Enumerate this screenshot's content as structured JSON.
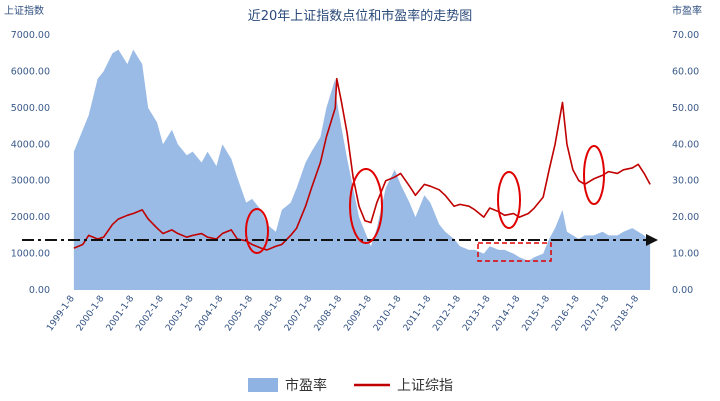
{
  "chart_data": {
    "type": "area",
    "title": "近20年上证指数点位和市盈率的走势图",
    "ylabel_left": "上证指数",
    "ylabel_right": "市盈率",
    "ylim_left": [
      0,
      7000
    ],
    "ylim_right": [
      0,
      70
    ],
    "yticks_left": [
      "0.00",
      "1000.00",
      "2000.00",
      "3000.00",
      "4000.00",
      "5000.00",
      "6000.00",
      "7000.00"
    ],
    "yticks_right": [
      "0.00",
      "10.00",
      "20.00",
      "30.00",
      "40.00",
      "50.00",
      "60.00",
      "70.00"
    ],
    "xticks": [
      "1999-1-8",
      "2000-1-8",
      "2001-1-8",
      "2002-1-8",
      "2003-1-8",
      "2004-1-8",
      "2005-1-8",
      "2006-1-8",
      "2007-1-8",
      "2008-1-8",
      "2009-1-8",
      "2010-1-8",
      "2011-1-8",
      "2012-1-8",
      "2013-1-8",
      "2014-1-8",
      "2015-1-8",
      "2016-1-8",
      "2017-1-8",
      "2018-1-8"
    ],
    "x": [
      1999.0,
      1999.3,
      1999.5,
      1999.8,
      2000.0,
      2000.3,
      2000.5,
      2000.8,
      2001.0,
      2001.3,
      2001.5,
      2001.8,
      2002.0,
      2002.3,
      2002.5,
      2002.8,
      2003.0,
      2003.3,
      2003.5,
      2003.8,
      2004.0,
      2004.3,
      2004.5,
      2004.8,
      2005.0,
      2005.3,
      2005.5,
      2005.8,
      2006.0,
      2006.3,
      2006.5,
      2006.8,
      2007.0,
      2007.3,
      2007.5,
      2007.8,
      2007.85,
      2008.0,
      2008.2,
      2008.4,
      2008.6,
      2008.8,
      2009.0,
      2009.2,
      2009.5,
      2009.8,
      2010.0,
      2010.3,
      2010.5,
      2010.8,
      2011.0,
      2011.3,
      2011.5,
      2011.8,
      2012.0,
      2012.3,
      2012.5,
      2012.8,
      2013.0,
      2013.3,
      2013.5,
      2013.8,
      2014.0,
      2014.3,
      2014.5,
      2014.8,
      2015.0,
      2015.2,
      2015.45,
      2015.6,
      2015.8,
      2016.0,
      2016.2,
      2016.5,
      2016.8,
      2017.0,
      2017.3,
      2017.5,
      2017.8,
      2018.0,
      2018.2,
      2018.4
    ],
    "series": [
      {
        "name": "市盈率",
        "axis": "right",
        "values": [
          38,
          44,
          48,
          58,
          60,
          65,
          66,
          62,
          66,
          62,
          50,
          46,
          40,
          44,
          40,
          37,
          38,
          35,
          38,
          34,
          40,
          36,
          31,
          24,
          25,
          22,
          18,
          16,
          22,
          24,
          28,
          35,
          38,
          42,
          50,
          58,
          52,
          45,
          36,
          28,
          20,
          16,
          12,
          17,
          28,
          33,
          29,
          24,
          20,
          26,
          24,
          18,
          16,
          14,
          12,
          11,
          11,
          10,
          12,
          11,
          11,
          10,
          9,
          8,
          9,
          10,
          14,
          17,
          22,
          16,
          15,
          14,
          15,
          15,
          16,
          15,
          15,
          16,
          17,
          16,
          15,
          13
        ]
      },
      {
        "name": "上证综指",
        "axis": "left",
        "values": [
          1150,
          1250,
          1500,
          1400,
          1450,
          1800,
          1950,
          2050,
          2100,
          2200,
          1950,
          1700,
          1550,
          1650,
          1550,
          1450,
          1500,
          1550,
          1450,
          1400,
          1550,
          1650,
          1400,
          1350,
          1250,
          1150,
          1100,
          1200,
          1250,
          1500,
          1700,
          2300,
          2800,
          3500,
          4200,
          5000,
          5800,
          5200,
          4300,
          3100,
          2300,
          1900,
          1850,
          2400,
          3000,
          3100,
          3200,
          2850,
          2600,
          2900,
          2850,
          2750,
          2600,
          2300,
          2350,
          2300,
          2200,
          2000,
          2250,
          2150,
          2050,
          2100,
          2000,
          2100,
          2250,
          2550,
          3300,
          4000,
          5150,
          4000,
          3300,
          3000,
          2900,
          3050,
          3150,
          3250,
          3200,
          3300,
          3350,
          3450,
          3200,
          2900
        ]
      }
    ],
    "legend_position": "bottom-center",
    "grid": false
  },
  "colors": {
    "area_fill": "#8fb4e3",
    "line": "#c00000",
    "annotation": "#e00000",
    "dashed_line": "#111111"
  }
}
